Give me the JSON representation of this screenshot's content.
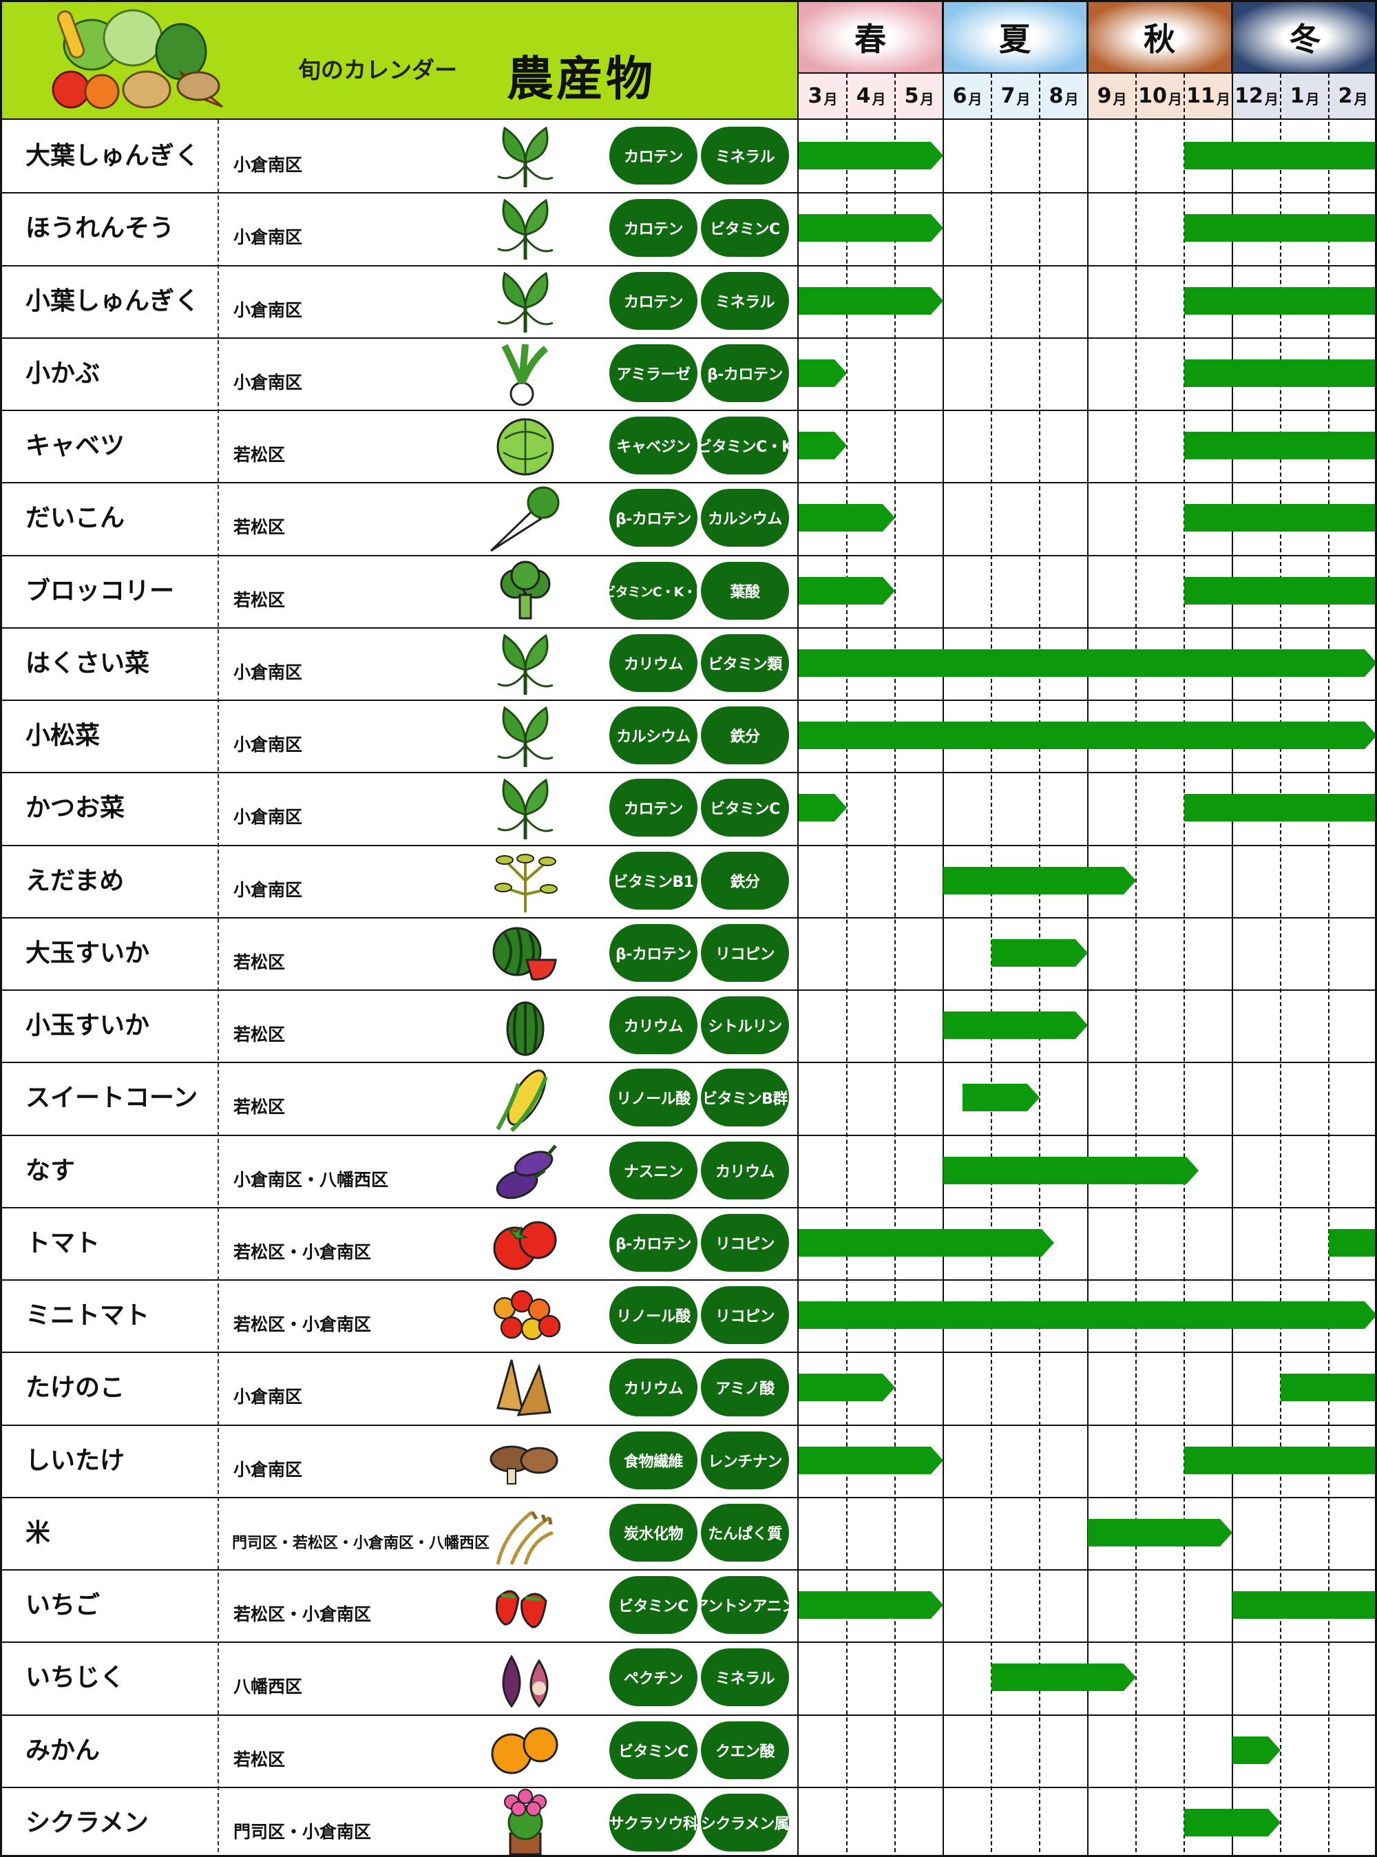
{
  "header": {
    "subtitle": "旬のカレンダー",
    "title": "農産物",
    "seasons": [
      {
        "label": "春",
        "color": "#e9a7b2"
      },
      {
        "label": "夏",
        "color": "#8ec5ec"
      },
      {
        "label": "秋",
        "color": "#b5622e"
      },
      {
        "label": "冬",
        "color": "#2c4470"
      }
    ],
    "months": [
      {
        "num": "3",
        "unit": "月"
      },
      {
        "num": "4",
        "unit": "月"
      },
      {
        "num": "5",
        "unit": "月"
      },
      {
        "num": "6",
        "unit": "月"
      },
      {
        "num": "7",
        "unit": "月"
      },
      {
        "num": "8",
        "unit": "月"
      },
      {
        "num": "9",
        "unit": "月"
      },
      {
        "num": "10",
        "unit": "月"
      },
      {
        "num": "11",
        "unit": "月"
      },
      {
        "num": "12",
        "unit": "月"
      },
      {
        "num": "1",
        "unit": "月"
      },
      {
        "num": "2",
        "unit": "月"
      }
    ]
  },
  "colors": {
    "header_green": "#a9dc14",
    "bar_green": "#0c9a0c",
    "pill_green": "#106a10"
  },
  "rows": [
    {
      "name": "大葉しゅんぎく",
      "area": "小倉南区",
      "icon": "leafy-greens-icon",
      "n1": "カロテン",
      "n2": "ミネラル",
      "seasons": [
        {
          "start": 0,
          "end": 3,
          "arrow": true
        },
        {
          "start": 8,
          "end": 12,
          "arrow": false
        }
      ]
    },
    {
      "name": "ほうれんそう",
      "area": "小倉南区",
      "icon": "spinach-icon",
      "n1": "カロテン",
      "n2": "ビタミンC",
      "seasons": [
        {
          "start": 0,
          "end": 3,
          "arrow": true
        },
        {
          "start": 8,
          "end": 12,
          "arrow": false
        }
      ]
    },
    {
      "name": "小葉しゅんぎく",
      "area": "小倉南区",
      "icon": "leafy-greens-icon",
      "n1": "カロテン",
      "n2": "ミネラル",
      "seasons": [
        {
          "start": 0,
          "end": 3,
          "arrow": true
        },
        {
          "start": 8,
          "end": 12,
          "arrow": false
        }
      ]
    },
    {
      "name": "小かぶ",
      "area": "小倉南区",
      "icon": "turnip-icon",
      "n1": "アミラーゼ",
      "n2": "β-カロテン",
      "seasons": [
        {
          "start": 0,
          "end": 1,
          "arrow": true
        },
        {
          "start": 8,
          "end": 12,
          "arrow": false
        }
      ]
    },
    {
      "name": "キャベツ",
      "area": "若松区",
      "icon": "cabbage-icon",
      "n1": "キャベジン",
      "n2": "ビタミンC・K",
      "seasons": [
        {
          "start": 0,
          "end": 1,
          "arrow": true
        },
        {
          "start": 8,
          "end": 12,
          "arrow": false
        }
      ]
    },
    {
      "name": "だいこん",
      "area": "若松区",
      "icon": "daikon-icon",
      "n1": "β-カロテン",
      "n2": "カルシウム",
      "seasons": [
        {
          "start": 0,
          "end": 2,
          "arrow": true
        },
        {
          "start": 8,
          "end": 12,
          "arrow": false
        }
      ]
    },
    {
      "name": "ブロッコリー",
      "area": "若松区",
      "icon": "broccoli-icon",
      "n1": "ビタミンC・K・E",
      "n2": "葉酸",
      "seasons": [
        {
          "start": 0,
          "end": 2,
          "arrow": true
        },
        {
          "start": 8,
          "end": 12,
          "arrow": false
        }
      ]
    },
    {
      "name": "はくさい菜",
      "area": "小倉南区",
      "icon": "leafy-greens-icon",
      "n1": "カリウム",
      "n2": "ビタミン類",
      "seasons": [
        {
          "start": 0,
          "end": 12,
          "arrow": true
        }
      ]
    },
    {
      "name": "小松菜",
      "area": "小倉南区",
      "icon": "komatsuna-icon",
      "n1": "カルシウム",
      "n2": "鉄分",
      "seasons": [
        {
          "start": 0,
          "end": 12,
          "arrow": true
        }
      ]
    },
    {
      "name": "かつお菜",
      "area": "小倉南区",
      "icon": "leafy-greens-icon",
      "n1": "カロテン",
      "n2": "ビタミンC",
      "seasons": [
        {
          "start": 0,
          "end": 1,
          "arrow": true
        },
        {
          "start": 8,
          "end": 12,
          "arrow": false
        }
      ]
    },
    {
      "name": "えだまめ",
      "area": "小倉南区",
      "icon": "edamame-icon",
      "n1": "ビタミンB1",
      "n2": "鉄分",
      "seasons": [
        {
          "start": 3,
          "end": 7,
          "arrow": true
        }
      ]
    },
    {
      "name": "大玉すいか",
      "area": "若松区",
      "icon": "watermelon-icon",
      "n1": "β-カロテン",
      "n2": "リコピン",
      "seasons": [
        {
          "start": 4,
          "end": 6,
          "arrow": true
        }
      ]
    },
    {
      "name": "小玉すいか",
      "area": "若松区",
      "icon": "small-watermelon-icon",
      "n1": "カリウム",
      "n2": "シトルリン",
      "seasons": [
        {
          "start": 3,
          "end": 6,
          "arrow": true
        }
      ]
    },
    {
      "name": "スイートコーン",
      "area": "若松区",
      "icon": "corn-icon",
      "n1": "リノール酸",
      "n2": "ビタミンB群",
      "seasons": [
        {
          "start": 3.4,
          "end": 5,
          "arrow": true
        }
      ]
    },
    {
      "name": "なす",
      "area": "小倉南区・八幡西区",
      "icon": "eggplant-icon",
      "n1": "ナスニン",
      "n2": "カリウム",
      "seasons": [
        {
          "start": 3,
          "end": 8.3,
          "arrow": true
        }
      ]
    },
    {
      "name": "トマト",
      "area": "若松区・小倉南区",
      "icon": "tomato-icon",
      "n1": "β-カロテン",
      "n2": "リコピン",
      "seasons": [
        {
          "start": 0,
          "end": 5.3,
          "arrow": true
        },
        {
          "start": 11,
          "end": 12,
          "arrow": false
        }
      ]
    },
    {
      "name": "ミニトマト",
      "area": "若松区・小倉南区",
      "icon": "cherry-tomato-icon",
      "n1": "リノール酸",
      "n2": "リコピン",
      "seasons": [
        {
          "start": 0,
          "end": 12,
          "arrow": true
        }
      ]
    },
    {
      "name": "たけのこ",
      "area": "小倉南区",
      "icon": "bamboo-shoot-icon",
      "n1": "カリウム",
      "n2": "アミノ酸",
      "seasons": [
        {
          "start": 0,
          "end": 2,
          "arrow": true
        },
        {
          "start": 10,
          "end": 12,
          "arrow": false
        }
      ]
    },
    {
      "name": "しいたけ",
      "area": "小倉南区",
      "icon": "shiitake-icon",
      "n1": "食物繊維",
      "n2": "レンチナン",
      "seasons": [
        {
          "start": 0,
          "end": 3,
          "arrow": true
        },
        {
          "start": 8,
          "end": 12,
          "arrow": false
        }
      ]
    },
    {
      "name": "米",
      "area": "門司区・若松区・小倉南区・八幡西区",
      "icon": "rice-icon",
      "n1": "炭水化物",
      "n2": "たんぱく質",
      "seasons": [
        {
          "start": 6,
          "end": 9,
          "arrow": true
        }
      ]
    },
    {
      "name": "いちご",
      "area": "若松区・小倉南区",
      "icon": "strawberry-icon",
      "n1": "ビタミンC",
      "n2": "アントシアニン",
      "seasons": [
        {
          "start": 0,
          "end": 3,
          "arrow": true
        },
        {
          "start": 9,
          "end": 12,
          "arrow": false
        }
      ]
    },
    {
      "name": "いちじく",
      "area": "八幡西区",
      "icon": "fig-icon",
      "n1": "ペクチン",
      "n2": "ミネラル",
      "seasons": [
        {
          "start": 4,
          "end": 7,
          "arrow": true
        }
      ]
    },
    {
      "name": "みかん",
      "area": "若松区",
      "icon": "mikan-icon",
      "n1": "ビタミンC",
      "n2": "クエン酸",
      "seasons": [
        {
          "start": 9,
          "end": 10,
          "arrow": true
        }
      ]
    },
    {
      "name": "シクラメン",
      "area": "門司区・小倉南区",
      "icon": "cyclamen-icon",
      "n1": "サクラソウ科",
      "n2": "シクラメン属",
      "seasons": [
        {
          "start": 8,
          "end": 10,
          "arrow": true
        }
      ]
    }
  ]
}
